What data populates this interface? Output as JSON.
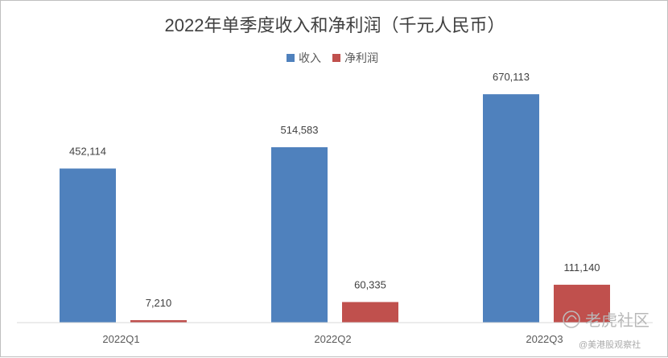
{
  "chart_data": {
    "type": "bar",
    "title": "2022年单季度收入和净利润（千元人民币）",
    "categories": [
      "2022Q1",
      "2022Q2",
      "2022Q3"
    ],
    "series": [
      {
        "name": "收入",
        "values": [
          452114,
          514583,
          670113
        ],
        "labels": [
          "452,114",
          "514,583",
          "670,113"
        ],
        "color": "#4f81bd"
      },
      {
        "name": "净利润",
        "values": [
          7210,
          60335,
          111140
        ],
        "labels": [
          "7,210",
          "60,335",
          "111,140"
        ],
        "color": "#c0504d"
      }
    ],
    "ylim": [
      0,
      720000
    ],
    "grid": false,
    "legend_position": "top-center"
  },
  "watermark": {
    "brand": "老虎社区",
    "account": "@美港股观察社"
  }
}
